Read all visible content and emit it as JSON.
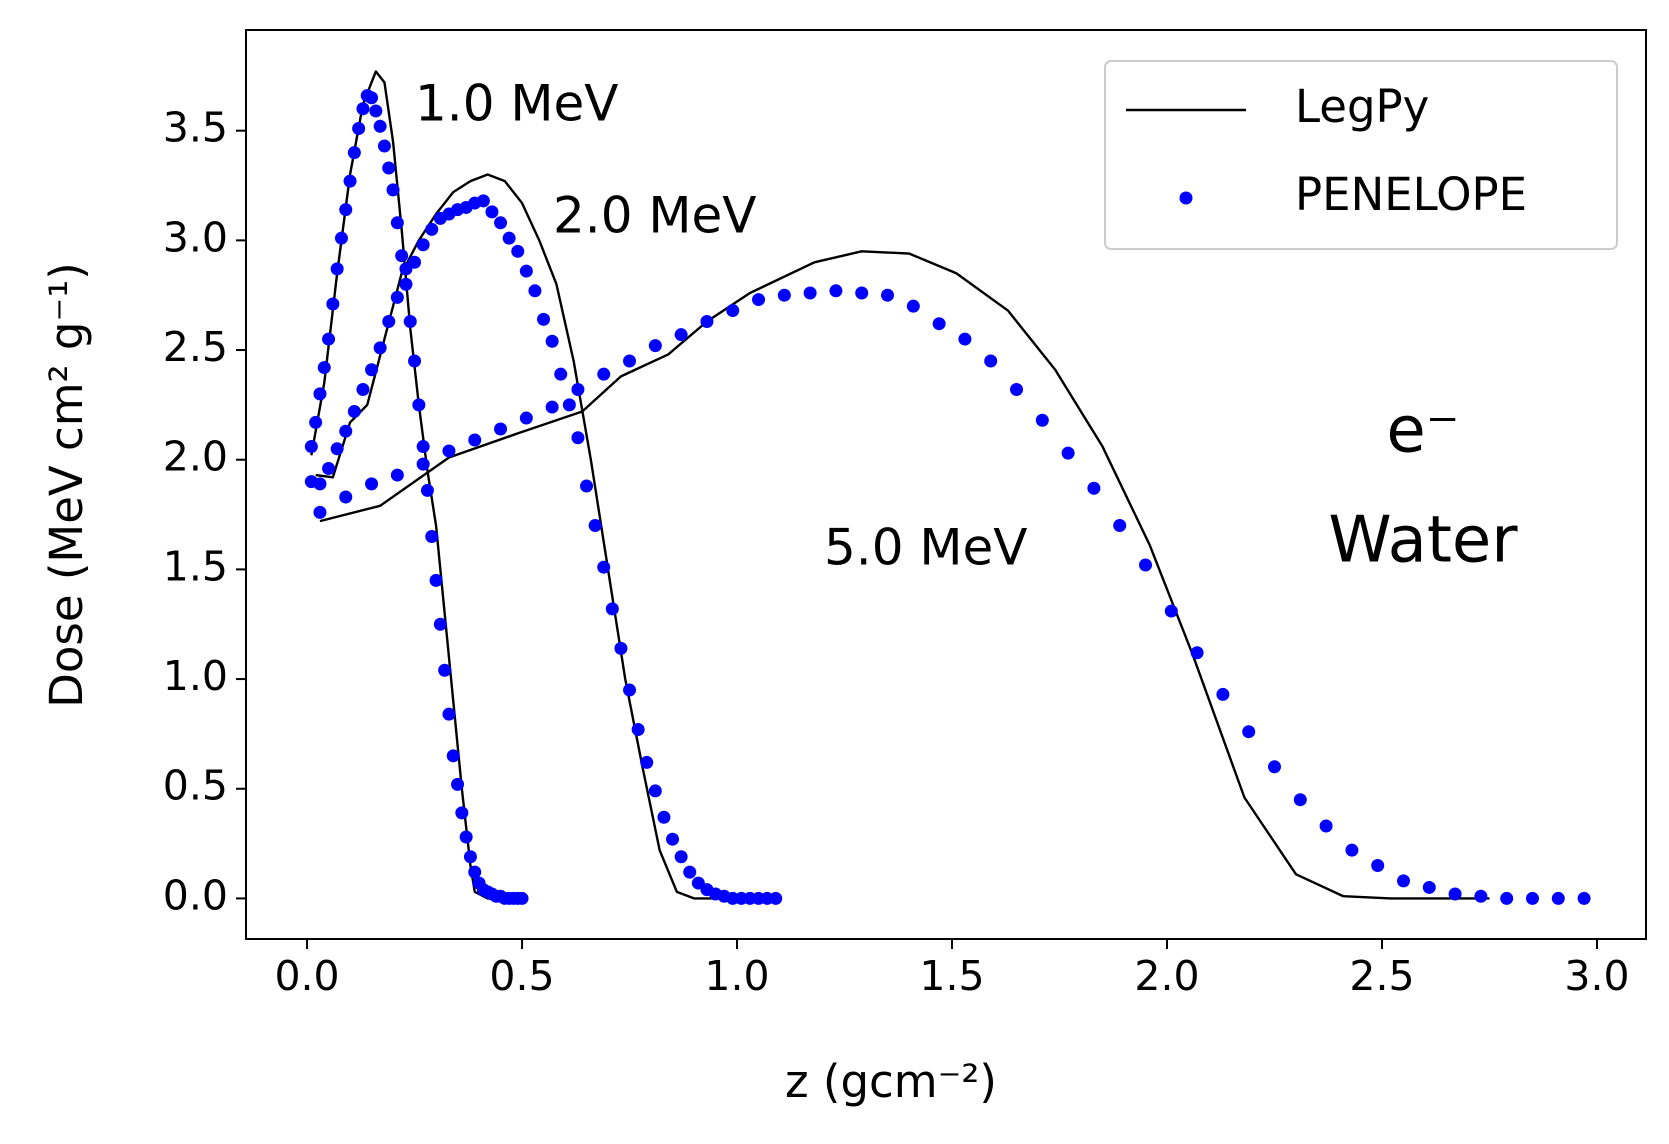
{
  "chart_data": {
    "type": "line",
    "xlabel": "z (gcm⁻²)",
    "ylabel": "Dose (MeV cm² g⁻¹)",
    "xlim": [
      -0.142,
      3.114
    ],
    "ylim": [
      -0.185,
      3.959
    ],
    "xticks": [
      {
        "value": 0,
        "label": "0.0"
      },
      0.5,
      {
        "value": 1,
        "label": "1.0"
      },
      1.5,
      {
        "value": 2,
        "label": "2.0"
      },
      2.5,
      {
        "value": 3,
        "label": "3.0"
      }
    ],
    "yticks": [
      {
        "value": 0,
        "label": "0.0"
      },
      0.5,
      {
        "value": 1,
        "label": "1.0"
      },
      1.5,
      {
        "value": 2,
        "label": "2.0"
      },
      2.5,
      {
        "value": 3,
        "label": "3.0"
      },
      3.5
    ],
    "legend": "upper right",
    "annotations": [
      "1.0 MeV",
      "2.0 MeV",
      "5.0 MeV",
      "e⁻",
      "Water"
    ],
    "series": [
      {
        "name": "LegPy",
        "color": "#000000",
        "style": "line",
        "curves": [
          {
            "x": [
              0.01,
              0.04,
              0.07,
              0.1,
              0.13,
              0.16,
              0.18,
              0.2,
              0.22,
              0.24,
              0.26,
              0.28,
              0.3,
              0.32,
              0.34,
              0.36,
              0.38,
              0.39,
              0.42,
              0.48
            ],
            "values": [
              2.02,
              2.35,
              2.85,
              3.3,
              3.62,
              3.77,
              3.72,
              3.45,
              3.05,
              2.6,
              2.25,
              1.95,
              1.7,
              1.3,
              0.9,
              0.5,
              0.15,
              0.03,
              0.0,
              0.0
            ]
          },
          {
            "x": [
              0.02,
              0.06,
              0.1,
              0.14,
              0.18,
              0.22,
              0.26,
              0.3,
              0.34,
              0.38,
              0.42,
              0.46,
              0.5,
              0.54,
              0.58,
              0.62,
              0.66,
              0.7,
              0.74,
              0.78,
              0.82,
              0.86,
              0.9,
              0.95,
              1.0,
              1.05
            ],
            "values": [
              1.93,
              1.92,
              2.17,
              2.25,
              2.55,
              2.85,
              3.0,
              3.12,
              3.22,
              3.27,
              3.3,
              3.27,
              3.17,
              3.0,
              2.8,
              2.45,
              2.0,
              1.5,
              1.0,
              0.6,
              0.22,
              0.03,
              0,
              0,
              0,
              0
            ]
          },
          {
            "x": [
              0.03,
              0.17,
              0.33,
              0.49,
              0.64,
              0.73,
              0.84,
              0.93,
              1.03,
              1.18,
              1.29,
              1.4,
              1.51,
              1.63,
              1.74,
              1.85,
              1.96,
              2.06,
              2.18,
              2.3,
              2.41,
              2.52,
              2.75
            ],
            "values": [
              1.72,
              1.79,
              2.01,
              2.12,
              2.22,
              2.38,
              2.48,
              2.63,
              2.76,
              2.9,
              2.95,
              2.94,
              2.85,
              2.68,
              2.41,
              2.06,
              1.61,
              1.11,
              0.46,
              0.11,
              0.01,
              0,
              0
            ]
          }
        ]
      },
      {
        "name": "PENELOPE",
        "color": "#0000ff",
        "style": "dots",
        "curves": [
          {
            "x": [
              0.01,
              0.02,
              0.03,
              0.04,
              0.05,
              0.06,
              0.07,
              0.08,
              0.09,
              0.1,
              0.11,
              0.12,
              0.13,
              0.14,
              0.15,
              0.16,
              0.17,
              0.18,
              0.19,
              0.2,
              0.21,
              0.22,
              0.23,
              0.24,
              0.25,
              0.26,
              0.27,
              0.28,
              0.29,
              0.3,
              0.31,
              0.32,
              0.33,
              0.34,
              0.35,
              0.36,
              0.37,
              0.38,
              0.39,
              0.4,
              0.41,
              0.42,
              0.43,
              0.44,
              0.45,
              0.46,
              0.47,
              0.48,
              0.49,
              0.5
            ],
            "values": [
              2.06,
              2.17,
              2.3,
              2.42,
              2.55,
              2.71,
              2.87,
              3.01,
              3.14,
              3.27,
              3.4,
              3.51,
              3.6,
              3.66,
              3.65,
              3.59,
              3.52,
              3.43,
              3.33,
              3.23,
              3.08,
              2.93,
              2.8,
              2.63,
              2.45,
              2.25,
              2.06,
              1.86,
              1.65,
              1.45,
              1.25,
              1.04,
              0.84,
              0.65,
              0.52,
              0.39,
              0.28,
              0.19,
              0.12,
              0.07,
              0.04,
              0.03,
              0.02,
              0.01,
              0.01,
              0,
              0,
              0,
              0,
              0
            ]
          },
          {
            "x": [
              0.01,
              0.03,
              0.05,
              0.07,
              0.09,
              0.11,
              0.13,
              0.15,
              0.17,
              0.19,
              0.21,
              0.23,
              0.25,
              0.27,
              0.29,
              0.31,
              0.33,
              0.35,
              0.37,
              0.39,
              0.41,
              0.43,
              0.45,
              0.47,
              0.49,
              0.51,
              0.53,
              0.55,
              0.57,
              0.59,
              0.61,
              0.63,
              0.65,
              0.67,
              0.69,
              0.71,
              0.73,
              0.75,
              0.77,
              0.79,
              0.81,
              0.83,
              0.85,
              0.87,
              0.89,
              0.91,
              0.93,
              0.95,
              0.97,
              0.99,
              1.01,
              1.03,
              1.05,
              1.07,
              1.09
            ],
            "values": [
              1.9,
              1.89,
              1.96,
              2.05,
              2.13,
              2.22,
              2.32,
              2.41,
              2.51,
              2.63,
              2.74,
              2.87,
              2.9,
              2.98,
              3.05,
              3.1,
              3.12,
              3.14,
              3.15,
              3.17,
              3.18,
              3.13,
              3.08,
              3.01,
              2.95,
              2.86,
              2.77,
              2.64,
              2.54,
              2.39,
              2.25,
              2.1,
              1.88,
              1.7,
              1.51,
              1.32,
              1.14,
              0.95,
              0.77,
              0.62,
              0.49,
              0.37,
              0.27,
              0.19,
              0.12,
              0.07,
              0.04,
              0.02,
              0.01,
              0,
              0,
              0,
              0,
              0,
              0
            ]
          },
          {
            "x": [
              0.03,
              0.09,
              0.15,
              0.21,
              0.27,
              0.33,
              0.39,
              0.45,
              0.51,
              0.57,
              0.63,
              0.69,
              0.75,
              0.81,
              0.87,
              0.93,
              0.99,
              1.05,
              1.11,
              1.17,
              1.23,
              1.29,
              1.35,
              1.41,
              1.47,
              1.53,
              1.59,
              1.65,
              1.71,
              1.77,
              1.83,
              1.89,
              1.95,
              2.01,
              2.07,
              2.13,
              2.19,
              2.25,
              2.31,
              2.37,
              2.43,
              2.49,
              2.55,
              2.61,
              2.67,
              2.73,
              2.79,
              2.85,
              2.91,
              2.97
            ],
            "values": [
              1.76,
              1.83,
              1.89,
              1.93,
              1.98,
              2.04,
              2.09,
              2.14,
              2.19,
              2.24,
              2.32,
              2.39,
              2.45,
              2.52,
              2.57,
              2.63,
              2.68,
              2.73,
              2.75,
              2.76,
              2.77,
              2.76,
              2.75,
              2.7,
              2.62,
              2.55,
              2.45,
              2.32,
              2.18,
              2.03,
              1.87,
              1.7,
              1.52,
              1.31,
              1.12,
              0.93,
              0.76,
              0.6,
              0.45,
              0.33,
              0.22,
              0.15,
              0.08,
              0.05,
              0.02,
              0.01,
              0,
              0,
              0,
              0
            ]
          }
        ]
      }
    ]
  }
}
